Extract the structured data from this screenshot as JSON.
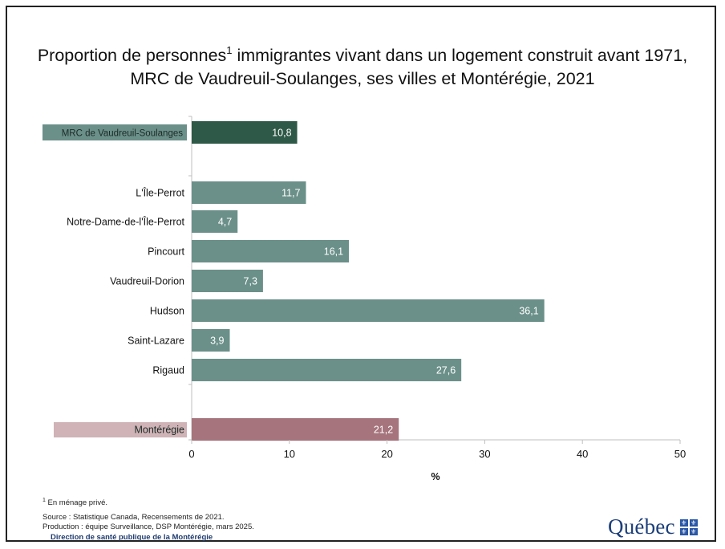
{
  "title_line1": "Proportion de personnes",
  "title_sup": "1",
  "title_line1_rest": " immigrantes vivant dans un logement construit avant 1971,",
  "title_line2": "MRC de Vaudreuil-Soulanges, ses villes et Montérégie, 2021",
  "footnotes": {
    "note_sup": "1",
    "note": " En ménage privé.",
    "source": "Source : Statistique Canada, Recensements de 2021.",
    "production": "Production : équipe Surveillance, DSP Montérégie, mars 2025.",
    "dsp": "Direction de santé publique de la Montérégie"
  },
  "logo": {
    "text": "Québec",
    "icon": "fleur-de-lis-flag-icon"
  },
  "chart_data": {
    "type": "bar",
    "orientation": "horizontal",
    "title": "Proportion de personnes¹ immigrantes vivant dans un logement construit avant 1971, MRC de Vaudreuil-Soulanges, ses villes et Montérégie, 2021",
    "xlabel": "%",
    "xlim": [
      0,
      50
    ],
    "xticks": [
      0,
      10,
      20,
      30,
      40,
      50
    ],
    "categories": [
      "MRC de Vaudreuil-Soulanges",
      "L'Île-Perrot",
      "Notre-Dame-de-l'Île-Perrot",
      "Pincourt",
      "Vaudreuil-Dorion",
      "Hudson",
      "Saint-Lazare",
      "Rigaud",
      "Montérégie"
    ],
    "values": [
      10.8,
      11.7,
      4.7,
      16.1,
      7.3,
      36.1,
      3.9,
      27.6,
      21.2
    ],
    "value_labels": [
      "10,8",
      "11,7",
      "4,7",
      "16,1",
      "7,3",
      "36,1",
      "3,9",
      "27,6",
      "21,2"
    ],
    "colors": {
      "mrc": "#2e5847",
      "city": "#6b9089",
      "monteregie": "#a6747c",
      "mrc_label_bg": "#6b9089",
      "monteregie_label_bg": "#cfb3b6"
    },
    "grid": false,
    "legend": "none"
  }
}
